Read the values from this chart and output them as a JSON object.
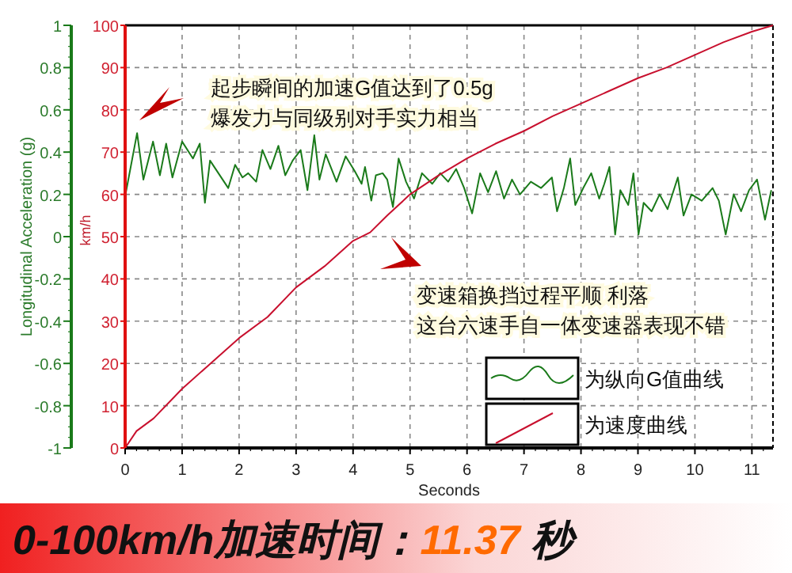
{
  "chart_data": {
    "type": "line",
    "xlabel": "Seconds",
    "ylabel": "km/h",
    "y2label": "Longitudinal Acceleration (g)",
    "xlim": [
      0,
      11.37
    ],
    "xticks": [
      0,
      1,
      2,
      3,
      4,
      5,
      6,
      7,
      8,
      9,
      10,
      11
    ],
    "ylim": [
      0,
      100
    ],
    "yticks": [
      0,
      10,
      20,
      30,
      40,
      50,
      60,
      70,
      80,
      90,
      100
    ],
    "y2lim": [
      -1,
      1
    ],
    "y2ticks": [
      -1,
      -0.8,
      -0.6,
      -0.4,
      -0.2,
      0,
      0.2,
      0.4,
      0.6,
      0.8,
      1
    ],
    "grid": true,
    "legend": "bottom right",
    "series": [
      {
        "name": "为纵向G值曲线",
        "color": "#1a7a1a",
        "axis": "y2",
        "x": [
          0,
          0.21,
          0.32,
          0.49,
          0.61,
          0.72,
          0.83,
          1.0,
          1.19,
          1.31,
          1.4,
          1.49,
          1.81,
          1.93,
          2.06,
          2.16,
          2.3,
          2.41,
          2.55,
          2.69,
          2.81,
          2.94,
          3.08,
          3.2,
          3.32,
          3.41,
          3.52,
          3.71,
          3.87,
          4.03,
          4.15,
          4.21,
          4.32,
          4.4,
          4.52,
          4.6,
          4.7,
          4.8,
          4.93,
          5.07,
          5.21,
          5.39,
          5.53,
          5.67,
          5.81,
          5.95,
          6.09,
          6.23,
          6.37,
          6.51,
          6.65,
          6.79,
          6.93,
          7.12,
          7.3,
          7.49,
          7.58,
          7.7,
          7.81,
          7.9,
          8.04,
          8.18,
          8.32,
          8.41,
          8.5,
          8.6,
          8.69,
          8.83,
          8.92,
          9.01,
          9.1,
          9.24,
          9.38,
          9.52,
          9.7,
          9.8,
          9.94,
          10.12,
          10.31,
          10.42,
          10.54,
          10.68,
          10.81,
          10.95,
          11.09,
          11.23,
          11.34
        ],
        "values": [
          0.19,
          0.49,
          0.27,
          0.45,
          0.29,
          0.44,
          0.28,
          0.45,
          0.37,
          0.44,
          0.16,
          0.36,
          0.23,
          0.34,
          0.28,
          0.3,
          0.26,
          0.41,
          0.32,
          0.43,
          0.29,
          0.36,
          0.41,
          0.22,
          0.48,
          0.27,
          0.39,
          0.26,
          0.38,
          0.31,
          0.25,
          0.33,
          0.17,
          0.29,
          0.3,
          0.27,
          0.14,
          0.37,
          0.26,
          0.18,
          0.3,
          0.25,
          0.3,
          0.26,
          0.32,
          0.23,
          0.11,
          0.3,
          0.21,
          0.31,
          0.18,
          0.27,
          0.2,
          0.26,
          0.23,
          0.28,
          0.12,
          0.23,
          0.37,
          0.15,
          0.23,
          0.3,
          0.18,
          0.25,
          0.33,
          0.01,
          0.22,
          0.15,
          0.3,
          0.01,
          0.16,
          0.12,
          0.2,
          0.13,
          0.28,
          0.1,
          0.2,
          0.17,
          0.23,
          0.17,
          0.01,
          0.2,
          0.12,
          0.22,
          0.27,
          0.08,
          0.22
        ]
      },
      {
        "name": "为速度曲线",
        "color": "#c8102e",
        "axis": "y",
        "x": [
          0,
          0.2,
          0.5,
          1,
          1.5,
          2,
          2.5,
          3,
          3.5,
          4,
          4.3,
          4.6,
          5,
          5.5,
          6,
          6.5,
          7,
          7.5,
          8,
          8.5,
          9,
          9.5,
          10,
          10.5,
          11,
          11.37
        ],
        "values": [
          0,
          4,
          7,
          14,
          20,
          26,
          31,
          38,
          43,
          49,
          51,
          55,
          60,
          64.5,
          68.5,
          72,
          75,
          78.5,
          81.5,
          84.5,
          87.5,
          90,
          93,
          96,
          98.5,
          100
        ]
      }
    ],
    "annotations": [
      "起步瞬间的加速G值达到了0.5g",
      "爆发力与同级别对手实力相当",
      "变速箱换挡过程平顺 利落",
      "这台六速手自一体变速器表现不错",
      "0-100km/h加速时间：11.37 秒"
    ]
  }
}
